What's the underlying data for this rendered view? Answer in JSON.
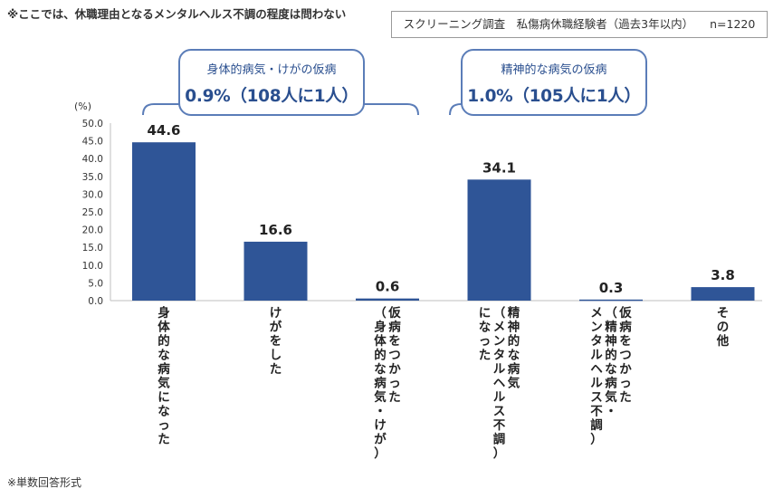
{
  "header": {
    "note": "※ここでは、休職理由となるメンタルヘルス不調の程度は問わない",
    "survey": "スクリーニング調査　私傷病休職経験者（過去3年以内）",
    "sample": "n=1220"
  },
  "callouts": [
    {
      "title": "身体的病気・けがの仮病",
      "value": "0.9%（108人に1人）"
    },
    {
      "title": "精神的な病気の仮病",
      "value": "1.0%（105人に1人）"
    }
  ],
  "footer": {
    "note": "※単数回答形式"
  },
  "colors": {
    "bar": "#2f5597",
    "callout_border": "#5b7db8",
    "callout_text": "#2a4f8f",
    "bracket": "#5b7db8"
  },
  "chart_data": {
    "type": "bar",
    "unit_label": "(%)",
    "ylim": [
      0,
      50
    ],
    "yticks": [
      "0.0",
      "5.0",
      "10.0",
      "15.0",
      "20.0",
      "25.0",
      "30.0",
      "35.0",
      "40.0",
      "45.0",
      "50.0"
    ],
    "categories": [
      [
        "身体的な病気になった"
      ],
      [
        "けがをした"
      ],
      [
        "仮病をつかった",
        "（身体的な病気・けが）"
      ],
      [
        "精神的な病気",
        "（メンタルヘルス不調）",
        "になった"
      ],
      [
        "仮病をつかった",
        "（精神的な病気・",
        "メンタルヘルス不調）"
      ],
      [
        "その他"
      ]
    ],
    "values": [
      44.6,
      16.6,
      0.6,
      34.1,
      0.3,
      3.8
    ],
    "labels": [
      "44.6",
      "16.6",
      "0.6",
      "34.1",
      "0.3",
      "3.8"
    ],
    "grid": false
  }
}
